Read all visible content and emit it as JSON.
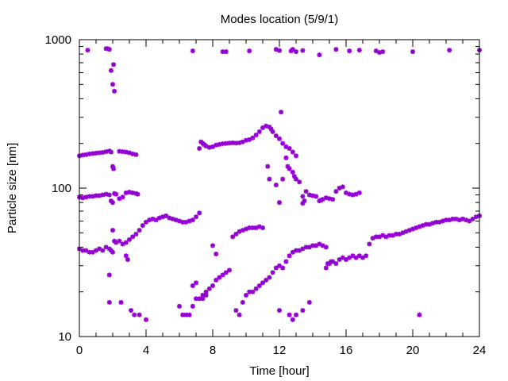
{
  "chart_data": {
    "type": "scatter",
    "title": "Modes location (5/9/1)",
    "xlabel": "Time [hour]",
    "ylabel": "Particle size [nm]",
    "xlim": [
      0,
      24
    ],
    "ylim": [
      10,
      1000
    ],
    "yscale": "log",
    "grid": false,
    "legend": "none",
    "marker_color": "#9400d3",
    "x_ticks": [
      {
        "value": 0,
        "label": "0"
      },
      {
        "value": 4,
        "label": "4"
      },
      {
        "value": 8,
        "label": "8"
      },
      {
        "value": 12,
        "label": "12"
      },
      {
        "value": 16,
        "label": "16"
      },
      {
        "value": 20,
        "label": "20"
      },
      {
        "value": 24,
        "label": "24"
      }
    ],
    "y_ticks": [
      {
        "value": 10,
        "label": "10"
      },
      {
        "value": 100,
        "label": "100"
      },
      {
        "value": 1000,
        "label": "1000"
      }
    ],
    "series": [
      {
        "points": [
          [
            0.0,
            165
          ],
          [
            0.2,
            167
          ],
          [
            0.4,
            168
          ],
          [
            0.6,
            170
          ],
          [
            0.8,
            171
          ],
          [
            1.0,
            172
          ],
          [
            1.2,
            173
          ],
          [
            1.4,
            174
          ],
          [
            1.6,
            176
          ],
          [
            1.8,
            178
          ],
          [
            1.9,
            175
          ],
          [
            2.0,
            140
          ],
          [
            2.05,
            135
          ],
          [
            2.4,
            177
          ],
          [
            2.6,
            176
          ],
          [
            2.8,
            175
          ],
          [
            3.0,
            173
          ],
          [
            3.2,
            170
          ],
          [
            3.4,
            168
          ],
          [
            7.3,
            205
          ],
          [
            7.4,
            200
          ],
          [
            7.5,
            196
          ],
          [
            7.6,
            192
          ],
          [
            7.8,
            188
          ],
          [
            8.0,
            190
          ],
          [
            8.2,
            195
          ],
          [
            8.4,
            197
          ],
          [
            8.6,
            199
          ],
          [
            8.8,
            200
          ],
          [
            9.0,
            201
          ],
          [
            9.2,
            202
          ],
          [
            9.4,
            201
          ],
          [
            9.6,
            202
          ],
          [
            9.8,
            205
          ],
          [
            10.0,
            210
          ],
          [
            10.2,
            212
          ],
          [
            10.4,
            218
          ],
          [
            10.6,
            228
          ],
          [
            10.8,
            240
          ],
          [
            11.0,
            255
          ],
          [
            11.2,
            262
          ],
          [
            11.4,
            258
          ],
          [
            11.5,
            250
          ],
          [
            11.6,
            240
          ],
          [
            11.8,
            225
          ],
          [
            12.0,
            215
          ],
          [
            12.1,
            325
          ],
          [
            12.2,
            200
          ],
          [
            12.4,
            190
          ],
          [
            12.6,
            185
          ],
          [
            12.8,
            175
          ],
          [
            13.0,
            165
          ],
          [
            7.2,
            185
          ],
          [
            11.3,
            140
          ],
          [
            11.4,
            115
          ],
          [
            12.4,
            160
          ],
          [
            12.5,
            140
          ],
          [
            12.6,
            135
          ],
          [
            12.8,
            128
          ],
          [
            12.9,
            120
          ],
          [
            13.0,
            115
          ],
          [
            13.2,
            110
          ]
        ]
      },
      {
        "points": [
          [
            0.0,
            87
          ],
          [
            0.2,
            86
          ],
          [
            0.4,
            87
          ],
          [
            0.6,
            88
          ],
          [
            0.8,
            88
          ],
          [
            1.0,
            89
          ],
          [
            1.2,
            89
          ],
          [
            1.4,
            90
          ],
          [
            1.6,
            91
          ],
          [
            1.8,
            90
          ],
          [
            1.9,
            82
          ],
          [
            2.0,
            80
          ],
          [
            2.1,
            92
          ],
          [
            2.2,
            91
          ],
          [
            2.4,
            85
          ],
          [
            2.6,
            87
          ],
          [
            2.8,
            93
          ],
          [
            3.0,
            94
          ],
          [
            3.2,
            93
          ],
          [
            3.4,
            92
          ],
          [
            3.5,
            91
          ],
          [
            11.8,
            105
          ],
          [
            12.0,
            80
          ],
          [
            12.2,
            115
          ],
          [
            13.4,
            88
          ],
          [
            13.6,
            95
          ],
          [
            13.8,
            90
          ],
          [
            14.0,
            89
          ],
          [
            14.2,
            88
          ],
          [
            14.4,
            82
          ],
          [
            14.6,
            84
          ],
          [
            14.8,
            86
          ],
          [
            15.0,
            85
          ],
          [
            15.2,
            84
          ],
          [
            15.4,
            95
          ],
          [
            15.6,
            100
          ],
          [
            15.8,
            102
          ],
          [
            16.0,
            93
          ],
          [
            16.2,
            91
          ],
          [
            16.4,
            90
          ],
          [
            16.6,
            91
          ],
          [
            16.8,
            93
          ],
          [
            13.5,
            82
          ],
          [
            13.4,
            79
          ],
          [
            14.5,
            83
          ]
        ]
      },
      {
        "points": [
          [
            0.0,
            39
          ],
          [
            0.2,
            38
          ],
          [
            0.4,
            38
          ],
          [
            0.6,
            37
          ],
          [
            0.8,
            37
          ],
          [
            1.0,
            38
          ],
          [
            1.2,
            39
          ],
          [
            1.4,
            38
          ],
          [
            1.6,
            40
          ],
          [
            1.8,
            39
          ],
          [
            1.9,
            38
          ],
          [
            2.0,
            37
          ],
          [
            2.1,
            44
          ],
          [
            2.2,
            43
          ],
          [
            2.4,
            44
          ],
          [
            2.6,
            42
          ],
          [
            2.8,
            43
          ],
          [
            3.0,
            45
          ],
          [
            3.2,
            47
          ],
          [
            3.4,
            49
          ],
          [
            3.6,
            52
          ],
          [
            3.8,
            56
          ],
          [
            4.0,
            59
          ],
          [
            4.2,
            61
          ],
          [
            4.4,
            62
          ],
          [
            4.6,
            61
          ],
          [
            4.8,
            63
          ],
          [
            5.0,
            64
          ],
          [
            5.2,
            65
          ],
          [
            5.4,
            63
          ],
          [
            5.6,
            62
          ],
          [
            5.8,
            61
          ],
          [
            6.0,
            60
          ],
          [
            6.2,
            59
          ],
          [
            6.4,
            59
          ],
          [
            6.6,
            60
          ],
          [
            6.8,
            61
          ],
          [
            7.0,
            64
          ],
          [
            7.2,
            68
          ],
          [
            2.0,
            52
          ],
          [
            2.8,
            35
          ],
          [
            2.9,
            33
          ],
          [
            1.8,
            26
          ],
          [
            8.0,
            41
          ],
          [
            8.2,
            36
          ],
          [
            9.2,
            47
          ],
          [
            9.4,
            49
          ],
          [
            9.6,
            51
          ],
          [
            9.8,
            52
          ],
          [
            10.0,
            53
          ],
          [
            10.2,
            54
          ],
          [
            10.4,
            54
          ],
          [
            10.6,
            54
          ],
          [
            10.8,
            55
          ],
          [
            11.0,
            54
          ],
          [
            14.8,
            29
          ],
          [
            15.0,
            31
          ],
          [
            15.2,
            32
          ],
          [
            15.4,
            31
          ],
          [
            15.6,
            33
          ],
          [
            15.8,
            34
          ],
          [
            16.0,
            33
          ],
          [
            16.2,
            34
          ],
          [
            16.4,
            35
          ],
          [
            16.6,
            34
          ],
          [
            16.8,
            35
          ],
          [
            17.0,
            34
          ],
          [
            17.2,
            35
          ],
          [
            17.4,
            42
          ],
          [
            17.6,
            46
          ],
          [
            17.8,
            47
          ],
          [
            18.0,
            47
          ],
          [
            18.2,
            48
          ],
          [
            18.4,
            47
          ],
          [
            18.6,
            48
          ],
          [
            18.8,
            48
          ],
          [
            19.0,
            49
          ],
          [
            19.2,
            49
          ],
          [
            19.4,
            50
          ],
          [
            19.6,
            51
          ],
          [
            19.8,
            52
          ],
          [
            20.0,
            53
          ],
          [
            20.2,
            54
          ],
          [
            20.4,
            55
          ],
          [
            20.6,
            56
          ],
          [
            20.8,
            57
          ],
          [
            21.0,
            57
          ],
          [
            21.2,
            58
          ],
          [
            21.4,
            59
          ],
          [
            21.6,
            59
          ],
          [
            21.8,
            60
          ],
          [
            22.0,
            61
          ],
          [
            22.2,
            61
          ],
          [
            22.4,
            62
          ],
          [
            22.6,
            62
          ],
          [
            22.8,
            61
          ],
          [
            23.0,
            62
          ],
          [
            23.2,
            61
          ],
          [
            23.4,
            60
          ],
          [
            23.6,
            62
          ],
          [
            23.8,
            64
          ],
          [
            24.0,
            65
          ],
          [
            14.9,
            31
          ],
          [
            15.1,
            32
          ]
        ]
      },
      {
        "points": [
          [
            1.8,
            17
          ],
          [
            2.5,
            17
          ],
          [
            3.1,
            15
          ],
          [
            3.3,
            14
          ],
          [
            3.6,
            14
          ],
          [
            4.0,
            13
          ],
          [
            6.2,
            14
          ],
          [
            6.4,
            14
          ],
          [
            6.6,
            14
          ],
          [
            6.8,
            16
          ],
          [
            7.0,
            18
          ],
          [
            7.2,
            18
          ],
          [
            7.4,
            19
          ],
          [
            7.6,
            20
          ],
          [
            7.8,
            21
          ],
          [
            8.0,
            22
          ],
          [
            8.2,
            24
          ],
          [
            8.4,
            25
          ],
          [
            8.6,
            26
          ],
          [
            8.8,
            27
          ],
          [
            9.0,
            28
          ],
          [
            6.0,
            16
          ],
          [
            6.8,
            22
          ],
          [
            7.0,
            23
          ],
          [
            7.4,
            18
          ],
          [
            7.6,
            19
          ],
          [
            9.4,
            15
          ],
          [
            9.6,
            14
          ],
          [
            9.8,
            17
          ],
          [
            10.0,
            19
          ],
          [
            10.2,
            20
          ],
          [
            10.4,
            20
          ],
          [
            10.6,
            21
          ],
          [
            10.8,
            22
          ],
          [
            11.0,
            23
          ],
          [
            11.2,
            24
          ],
          [
            11.4,
            25
          ],
          [
            11.6,
            27
          ],
          [
            11.8,
            29
          ],
          [
            12.0,
            30
          ],
          [
            12.2,
            29
          ],
          [
            12.4,
            32
          ],
          [
            12.6,
            35
          ],
          [
            12.8,
            37
          ],
          [
            13.0,
            38
          ],
          [
            13.2,
            38
          ],
          [
            13.4,
            39
          ],
          [
            13.6,
            40
          ],
          [
            13.8,
            40
          ],
          [
            14.0,
            41
          ],
          [
            14.2,
            41
          ],
          [
            14.4,
            42
          ],
          [
            14.6,
            41
          ],
          [
            14.8,
            40
          ],
          [
            12.0,
            15
          ],
          [
            12.6,
            14
          ],
          [
            12.8,
            13
          ],
          [
            13.0,
            14
          ],
          [
            13.4,
            15
          ],
          [
            13.8,
            17
          ],
          [
            20.4,
            14
          ]
        ]
      },
      {
        "points": [
          [
            0.5,
            850
          ],
          [
            1.6,
            870
          ],
          [
            1.7,
            870
          ],
          [
            1.8,
            860
          ],
          [
            1.9,
            620
          ],
          [
            2.0,
            500
          ],
          [
            2.05,
            680
          ],
          [
            2.1,
            450
          ],
          [
            6.8,
            840
          ],
          [
            8.6,
            830
          ],
          [
            8.8,
            830
          ],
          [
            10.2,
            840
          ],
          [
            11.8,
            860
          ],
          [
            12.0,
            845
          ],
          [
            12.7,
            840
          ],
          [
            12.8,
            860
          ],
          [
            13.0,
            830
          ],
          [
            13.4,
            845
          ],
          [
            14.4,
            790
          ],
          [
            15.4,
            860
          ],
          [
            16.2,
            840
          ],
          [
            16.8,
            850
          ],
          [
            17.8,
            840
          ],
          [
            18.0,
            820
          ],
          [
            18.2,
            830
          ],
          [
            20.0,
            830
          ],
          [
            22.2,
            850
          ],
          [
            24.0,
            850
          ]
        ]
      }
    ]
  }
}
